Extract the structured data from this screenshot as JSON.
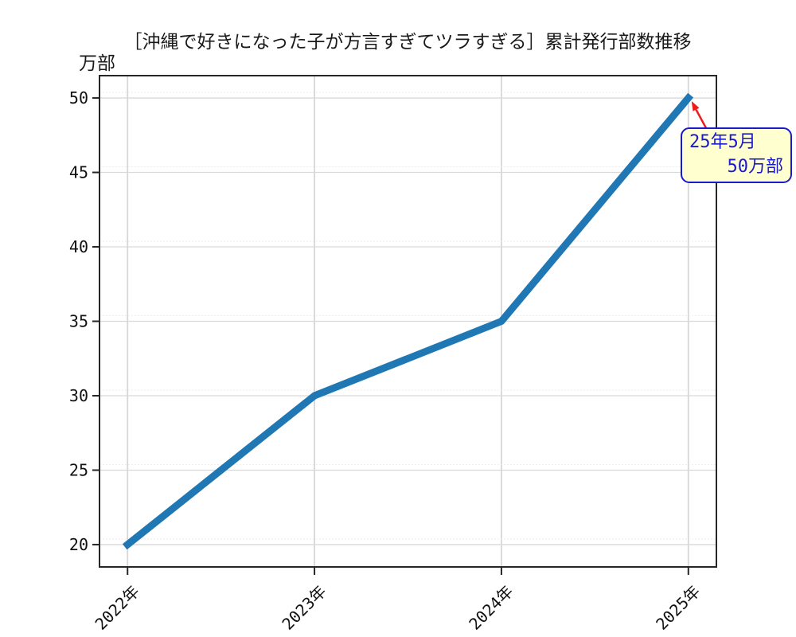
{
  "chart_data": {
    "type": "line",
    "title": "［沖縄で好きになった子が方言すぎてツラすぎる］累計発行部数推移",
    "ylabel": "万部",
    "x_categories": [
      "2022年",
      "2023年",
      "2024年",
      "2025年"
    ],
    "x_values": [
      2022,
      2023,
      2024,
      2025
    ],
    "values": [
      20,
      30,
      35,
      50
    ],
    "yticks": [
      20,
      25,
      30,
      35,
      40,
      45,
      50
    ],
    "ylim": [
      18.5,
      51.5
    ],
    "xlim": [
      2021.85,
      2025.15
    ],
    "grid": true,
    "legend": "none",
    "x_tick_rotation": -45,
    "line_color": "#1f77b4",
    "line_width": 9,
    "spine_color": "#262626",
    "grid_color": "#d9d9d9",
    "annotation": {
      "line1": "25年5月",
      "line2": "50万部",
      "target_x": 2025,
      "target_y": 50,
      "text_color": "#1a1acd",
      "border_color": "#1a1acd",
      "bg_color": "#ffffd0",
      "arrow_color": "#ec1c1c"
    }
  }
}
